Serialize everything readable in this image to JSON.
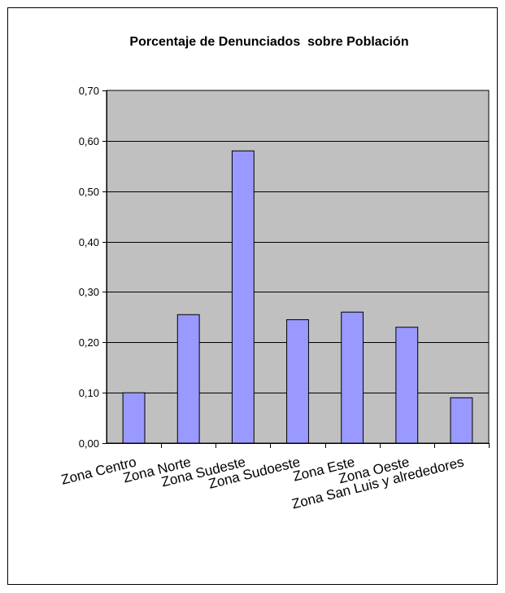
{
  "chart_data": {
    "type": "bar",
    "title": "Porcentaje de Denunciados  sobre Población",
    "xlabel": "",
    "ylabel": "",
    "categories": [
      "Zona Centro",
      "Zona Norte",
      "Zona Sudeste",
      "Zona Sudoeste",
      "Zona Este",
      "Zona Oeste",
      "Zona San Luis y alrededores"
    ],
    "values": [
      0.1,
      0.255,
      0.58,
      0.245,
      0.26,
      0.23,
      0.09
    ],
    "ylim": [
      0,
      0.7
    ],
    "yticks": [
      "0,00",
      "0,10",
      "0,20",
      "0,30",
      "0,40",
      "0,50",
      "0,60",
      "0,70"
    ],
    "grid": true,
    "legend": "none",
    "colors": {
      "bar": "#9999ff",
      "plot_background": "#c0c0c0",
      "gridline": "#000000",
      "border": "#000000"
    }
  }
}
